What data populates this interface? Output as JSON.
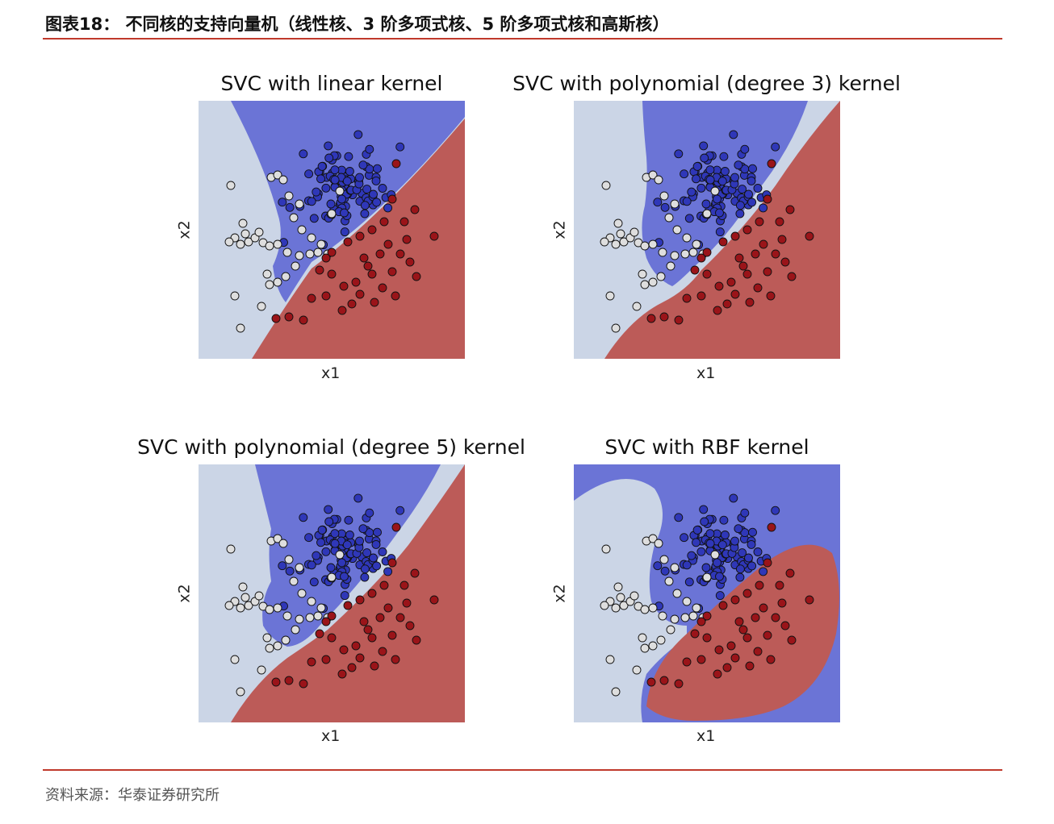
{
  "header": {
    "title": "图表18：   不同核的支持向量机（线性核、3 阶多项式核、5 阶多项式核和高斯核）"
  },
  "footer": {
    "source": "资料来源：华泰证券研究所"
  },
  "colors": {
    "region_white": "#cbd5e6",
    "region_blue": "#6b74d6",
    "region_red": "#bc5b58",
    "point_white": "#dedede",
    "point_blue": "#2f37b8",
    "point_red": "#9a1419"
  },
  "chart_data": [
    {
      "type": "scatter",
      "title": "SVC with linear kernel",
      "xlabel": "x1",
      "ylabel": "x2"
    },
    {
      "type": "scatter",
      "title": "SVC with polynomial (degree 3) kernel",
      "xlabel": "x1",
      "ylabel": "x2"
    },
    {
      "type": "scatter",
      "title": "SVC with polynomial (degree 5) kernel",
      "xlabel": "x1",
      "ylabel": "x2"
    },
    {
      "type": "scatter",
      "title": "SVC with RBF kernel",
      "xlabel": "x1",
      "ylabel": "x2"
    }
  ]
}
